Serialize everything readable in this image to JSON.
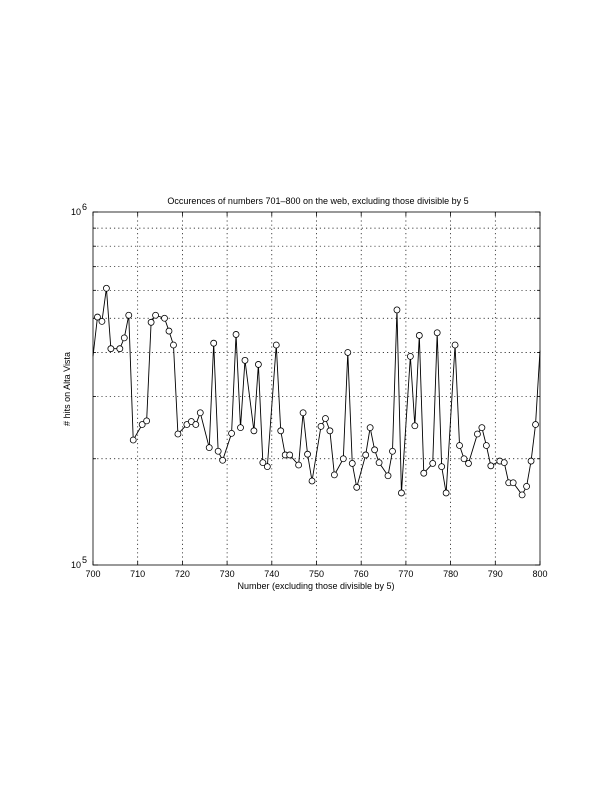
{
  "chart_data": {
    "type": "line",
    "title": "Occurences of numbers 701–800 on the web, excluding those divisible by 5",
    "xlabel": "Number (excluding those divisible by 5)",
    "ylabel": "# hits on Alta Vista",
    "xlim": [
      700,
      800
    ],
    "ylim": [
      100000,
      1000000
    ],
    "yscale": "log",
    "grid": true,
    "x_ticks": [
      "700",
      "710",
      "720",
      "730",
      "740",
      "750",
      "760",
      "770",
      "780",
      "790",
      "800"
    ],
    "y_ticks": [
      {
        "base": "10",
        "exp": "5"
      },
      {
        "base": "10",
        "exp": "6"
      }
    ],
    "marker": "circle",
    "x": [
      700,
      701,
      702,
      703,
      704,
      706,
      707,
      708,
      709,
      711,
      712,
      713,
      714,
      716,
      717,
      718,
      719,
      721,
      722,
      723,
      724,
      726,
      727,
      728,
      729,
      731,
      732,
      733,
      734,
      736,
      737,
      738,
      739,
      741,
      742,
      743,
      744,
      746,
      747,
      748,
      749,
      751,
      752,
      753,
      754,
      756,
      757,
      758,
      759,
      761,
      762,
      763,
      764,
      766,
      767,
      768,
      769,
      771,
      772,
      773,
      774,
      776,
      777,
      778,
      779,
      781,
      782,
      783,
      784,
      786,
      787,
      788,
      789,
      791,
      792,
      793,
      794,
      796,
      797,
      798,
      799,
      800
    ],
    "y": [
      390000,
      504000,
      490000,
      608000,
      410000,
      410000,
      440000,
      510000,
      226000,
      250000,
      256000,
      487000,
      510000,
      500000,
      460000,
      420000,
      235000,
      250000,
      255000,
      250000,
      270000,
      215000,
      425000,
      210000,
      198000,
      236000,
      450000,
      245000,
      380000,
      240000,
      370000,
      195000,
      190000,
      420000,
      240000,
      205000,
      205000,
      192000,
      270000,
      206000,
      173000,
      247000,
      260000,
      240000,
      180000,
      200000,
      400000,
      194000,
      166000,
      205000,
      245000,
      212000,
      195000,
      179000,
      210000,
      528000,
      160000,
      390000,
      248000,
      447000,
      182000,
      194000,
      455000,
      190000,
      160000,
      420000,
      218000,
      200000,
      194000,
      235000,
      245000,
      218000,
      191000,
      197000,
      195000,
      171000,
      171000,
      158000,
      167000,
      197000,
      250000,
      405000
    ]
  }
}
